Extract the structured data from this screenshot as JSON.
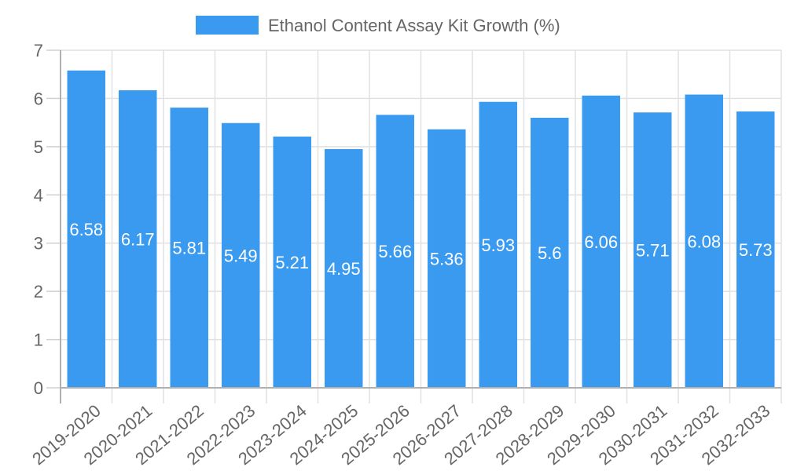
{
  "chart_data": {
    "type": "bar",
    "title": "",
    "xlabel": "",
    "ylabel": "",
    "categories": [
      "2019-2020",
      "2020-2021",
      "2021-2022",
      "2022-2023",
      "2023-2024",
      "2024-2025",
      "2025-2026",
      "2026-2027",
      "2027-2028",
      "2028-2029",
      "2029-2030",
      "2030-2031",
      "2031-2032",
      "2032-2033"
    ],
    "series": [
      {
        "name": "Ethanol Content Assay Kit Growth (%)",
        "color": "#3a9af0",
        "values": [
          6.58,
          6.17,
          5.81,
          5.49,
          5.21,
          4.95,
          5.66,
          5.36,
          5.93,
          5.6,
          6.06,
          5.71,
          6.08,
          5.73
        ],
        "labels": [
          "6.58",
          "6.17",
          "5.81",
          "5.49",
          "5.21",
          "4.95",
          "5.66",
          "5.36",
          "5.93",
          "5.6",
          "6.06",
          "5.71",
          "6.08",
          "5.73"
        ]
      }
    ],
    "ylim": [
      0,
      7
    ],
    "yticks": [
      "0",
      "1",
      "2",
      "3",
      "4",
      "5",
      "6",
      "7"
    ],
    "grid": true,
    "legend_position": "top",
    "data_labels": "inside-center"
  },
  "legend": {
    "label": "Ethanol Content Assay Kit Growth (%)"
  }
}
